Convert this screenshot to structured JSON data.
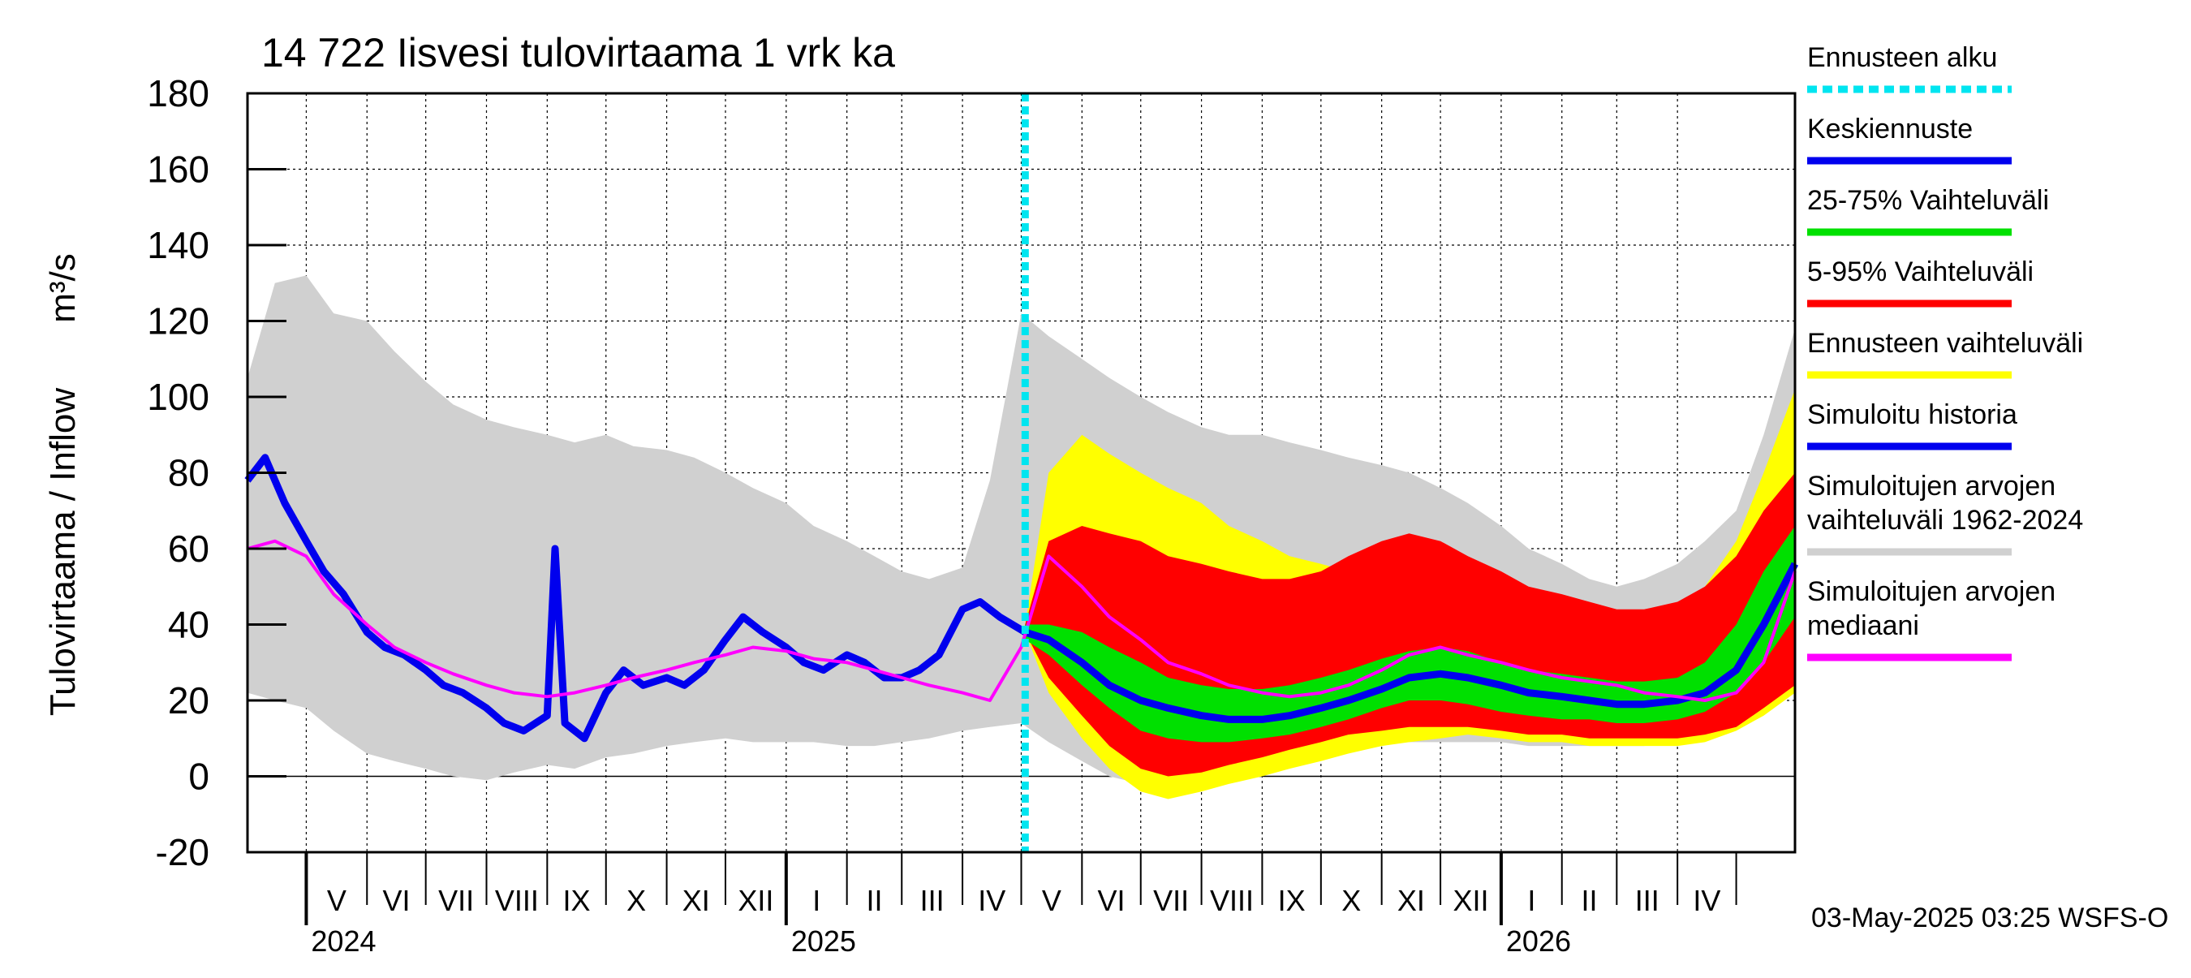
{
  "chart_data": {
    "type": "area",
    "title": "14 722 Iisvesi tulovirtaama 1 vrk ka",
    "ylabel": "Tulovirtaama / Inflow",
    "yunit": "m³/s",
    "ylim": [
      -20,
      180
    ],
    "yticks": [
      -20,
      0,
      20,
      40,
      60,
      80,
      100,
      120,
      140,
      160,
      180
    ],
    "grid": true,
    "legend_placement": "right",
    "xlim": [
      "2024-04-01",
      "2026-05-31"
    ],
    "forecast_start": "2025-05-03",
    "months": [
      {
        "label": "V",
        "start": "2024-05-01"
      },
      {
        "label": "VI",
        "start": "2024-06-01"
      },
      {
        "label": "VII",
        "start": "2024-07-01"
      },
      {
        "label": "VIII",
        "start": "2024-08-01"
      },
      {
        "label": "IX",
        "start": "2024-09-01"
      },
      {
        "label": "X",
        "start": "2024-10-01"
      },
      {
        "label": "XI",
        "start": "2024-11-01"
      },
      {
        "label": "XII",
        "start": "2024-12-01"
      },
      {
        "label": "I",
        "start": "2025-01-01"
      },
      {
        "label": "II",
        "start": "2025-02-01"
      },
      {
        "label": "III",
        "start": "2025-03-01"
      },
      {
        "label": "IV",
        "start": "2025-04-01"
      },
      {
        "label": "V",
        "start": "2025-05-01"
      },
      {
        "label": "VI",
        "start": "2025-06-01"
      },
      {
        "label": "VII",
        "start": "2025-07-01"
      },
      {
        "label": "VIII",
        "start": "2025-08-01"
      },
      {
        "label": "IX",
        "start": "2025-09-01"
      },
      {
        "label": "X",
        "start": "2025-10-01"
      },
      {
        "label": "XI",
        "start": "2025-11-01"
      },
      {
        "label": "XII",
        "start": "2025-12-01"
      },
      {
        "label": "I",
        "start": "2026-01-01"
      },
      {
        "label": "II",
        "start": "2026-02-01"
      },
      {
        "label": "III",
        "start": "2026-03-01"
      },
      {
        "label": "IV",
        "start": "2026-04-01"
      }
    ],
    "years": [
      {
        "label": "2024",
        "start": "2024-05-01"
      },
      {
        "label": "2025",
        "start": "2025-01-01"
      },
      {
        "label": "2026",
        "start": "2026-01-01"
      }
    ],
    "legend": [
      {
        "label": "Ennusteen alku",
        "color": "#00e5f0",
        "style": "dashed"
      },
      {
        "label": "Keskiennuste",
        "color": "#0000ee",
        "style": "solid"
      },
      {
        "label": "25-75% Vaihteluväli",
        "color": "#00e000",
        "style": "solid"
      },
      {
        "label": "5-95% Vaihteluväli",
        "color": "#ff0000",
        "style": "solid"
      },
      {
        "label": "Ennusteen vaihteluväli",
        "color": "#ffff00",
        "style": "solid"
      },
      {
        "label": "Simuloitu historia",
        "color": "#0000ee",
        "style": "solid"
      },
      {
        "label": "Simuloitujen arvojen\nvaihteluväli 1962-2024",
        "color": "#d0d0d0",
        "style": "solid"
      },
      {
        "label": "Simuloitujen arvojen\nmediaani",
        "color": "#ff00ff",
        "style": "solid"
      }
    ],
    "footer": "03-May-2025 03:25 WSFS-O",
    "series": [
      {
        "name": "Simuloitujen arvojen vaihteluväli 1962-2024",
        "kind": "band",
        "color": "#d0d0d0",
        "x": [
          "2024-04-01",
          "2024-04-15",
          "2024-05-01",
          "2024-05-15",
          "2024-06-01",
          "2024-06-15",
          "2024-07-01",
          "2024-07-15",
          "2024-08-01",
          "2024-08-15",
          "2024-09-01",
          "2024-09-15",
          "2024-10-01",
          "2024-10-15",
          "2024-11-01",
          "2024-11-15",
          "2024-12-01",
          "2024-12-15",
          "2025-01-01",
          "2025-01-15",
          "2025-02-01",
          "2025-02-15",
          "2025-03-01",
          "2025-03-15",
          "2025-04-01",
          "2025-04-15",
          "2025-05-01",
          "2025-05-15",
          "2025-06-01",
          "2025-06-15",
          "2025-07-01",
          "2025-07-15",
          "2025-08-01",
          "2025-08-15",
          "2025-09-01",
          "2025-09-15",
          "2025-10-01",
          "2025-10-15",
          "2025-11-01",
          "2025-11-15",
          "2025-12-01",
          "2025-12-15",
          "2026-01-01",
          "2026-01-15",
          "2026-02-01",
          "2026-02-15",
          "2026-03-01",
          "2026-03-15",
          "2026-04-01",
          "2026-04-15",
          "2026-05-01",
          "2026-05-15",
          "2026-05-31"
        ],
        "low": [
          22,
          20,
          18,
          12,
          6,
          4,
          2,
          0,
          -1,
          1,
          3,
          2,
          5,
          6,
          8,
          9,
          10,
          9,
          9,
          9,
          8,
          8,
          9,
          10,
          12,
          13,
          14,
          9,
          4,
          0,
          -2,
          0,
          2,
          4,
          7,
          8,
          9,
          10,
          9,
          9,
          9,
          9,
          9,
          8,
          8,
          8,
          8,
          8,
          9,
          10,
          14,
          18,
          22
        ],
        "high": [
          105,
          130,
          132,
          122,
          120,
          112,
          104,
          98,
          94,
          92,
          90,
          88,
          90,
          87,
          86,
          84,
          80,
          76,
          72,
          66,
          62,
          58,
          54,
          52,
          55,
          78,
          122,
          116,
          110,
          105,
          100,
          96,
          92,
          90,
          90,
          88,
          86,
          84,
          82,
          80,
          76,
          72,
          66,
          60,
          56,
          52,
          50,
          52,
          56,
          62,
          70,
          90,
          118
        ]
      },
      {
        "name": "Ennusteen vaihteluväli",
        "kind": "band",
        "color": "#ffff00",
        "x": [
          "2025-05-03",
          "2025-05-15",
          "2025-06-01",
          "2025-06-15",
          "2025-07-01",
          "2025-07-15",
          "2025-08-01",
          "2025-08-15",
          "2025-09-01",
          "2025-09-15",
          "2025-10-01",
          "2025-10-15",
          "2025-11-01",
          "2025-11-15",
          "2025-12-01",
          "2025-12-15",
          "2026-01-01",
          "2026-01-15",
          "2026-02-01",
          "2026-02-15",
          "2026-03-01",
          "2026-03-15",
          "2026-04-01",
          "2026-04-15",
          "2026-05-01",
          "2026-05-15",
          "2026-05-31"
        ],
        "low": [
          38,
          22,
          10,
          2,
          -4,
          -6,
          -4,
          -2,
          0,
          2,
          4,
          6,
          8,
          9,
          10,
          11,
          10,
          9,
          9,
          8,
          8,
          8,
          8,
          9,
          12,
          16,
          22
        ],
        "high": [
          40,
          80,
          90,
          85,
          80,
          76,
          72,
          66,
          62,
          58,
          56,
          54,
          54,
          56,
          56,
          54,
          52,
          48,
          46,
          44,
          42,
          42,
          44,
          50,
          62,
          80,
          102
        ]
      },
      {
        "name": "5-95% Vaihteluväli",
        "kind": "band",
        "color": "#ff0000",
        "x": [
          "2025-05-03",
          "2025-05-15",
          "2025-06-01",
          "2025-06-15",
          "2025-07-01",
          "2025-07-15",
          "2025-08-01",
          "2025-08-15",
          "2025-09-01",
          "2025-09-15",
          "2025-10-01",
          "2025-10-15",
          "2025-11-01",
          "2025-11-15",
          "2025-12-01",
          "2025-12-15",
          "2026-01-01",
          "2026-01-15",
          "2026-02-01",
          "2026-02-15",
          "2026-03-01",
          "2026-03-15",
          "2026-04-01",
          "2026-04-15",
          "2026-05-01",
          "2026-05-15",
          "2026-05-31"
        ],
        "low": [
          38,
          26,
          16,
          8,
          2,
          0,
          1,
          3,
          5,
          7,
          9,
          11,
          12,
          13,
          13,
          13,
          12,
          11,
          11,
          10,
          10,
          10,
          10,
          11,
          13,
          18,
          24
        ],
        "high": [
          40,
          62,
          66,
          64,
          62,
          58,
          56,
          54,
          52,
          52,
          54,
          58,
          62,
          64,
          62,
          58,
          54,
          50,
          48,
          46,
          44,
          44,
          46,
          50,
          58,
          70,
          80
        ]
      },
      {
        "name": "25-75% Vaihteluväli",
        "kind": "band",
        "color": "#00e000",
        "x": [
          "2025-05-03",
          "2025-05-15",
          "2025-06-01",
          "2025-06-15",
          "2025-07-01",
          "2025-07-15",
          "2025-08-01",
          "2025-08-15",
          "2025-09-01",
          "2025-09-15",
          "2025-10-01",
          "2025-10-15",
          "2025-11-01",
          "2025-11-15",
          "2025-12-01",
          "2025-12-15",
          "2026-01-01",
          "2026-01-15",
          "2026-02-01",
          "2026-02-15",
          "2026-03-01",
          "2026-03-15",
          "2026-04-01",
          "2026-04-15",
          "2026-05-01",
          "2026-05-15",
          "2026-05-31"
        ],
        "low": [
          36,
          32,
          24,
          18,
          12,
          10,
          9,
          9,
          10,
          11,
          13,
          15,
          18,
          20,
          20,
          19,
          17,
          16,
          15,
          15,
          14,
          14,
          15,
          17,
          22,
          30,
          42
        ],
        "high": [
          40,
          40,
          38,
          34,
          30,
          26,
          24,
          23,
          23,
          24,
          26,
          28,
          31,
          33,
          34,
          33,
          30,
          28,
          27,
          26,
          25,
          25,
          26,
          30,
          40,
          54,
          66
        ]
      },
      {
        "name": "Keskiennuste",
        "kind": "line",
        "color": "#0000ee",
        "x": [
          "2025-05-03",
          "2025-05-15",
          "2025-06-01",
          "2025-06-15",
          "2025-07-01",
          "2025-07-15",
          "2025-08-01",
          "2025-08-15",
          "2025-09-01",
          "2025-09-15",
          "2025-10-01",
          "2025-10-15",
          "2025-11-01",
          "2025-11-15",
          "2025-12-01",
          "2025-12-15",
          "2026-01-01",
          "2026-01-15",
          "2026-02-01",
          "2026-02-15",
          "2026-03-01",
          "2026-03-15",
          "2026-04-01",
          "2026-04-15",
          "2026-05-01",
          "2026-05-15",
          "2026-05-31"
        ],
        "y": [
          38,
          36,
          30,
          24,
          20,
          18,
          16,
          15,
          15,
          16,
          18,
          20,
          23,
          26,
          27,
          26,
          24,
          22,
          21,
          20,
          19,
          19,
          20,
          22,
          28,
          40,
          56
        ]
      },
      {
        "name": "Simuloitu historia",
        "kind": "line",
        "color": "#0000ee",
        "x": [
          "2024-04-01",
          "2024-04-10",
          "2024-04-20",
          "2024-05-01",
          "2024-05-10",
          "2024-05-20",
          "2024-06-01",
          "2024-06-10",
          "2024-06-20",
          "2024-07-01",
          "2024-07-10",
          "2024-07-20",
          "2024-08-01",
          "2024-08-10",
          "2024-08-20",
          "2024-09-01",
          "2024-09-05",
          "2024-09-10",
          "2024-09-20",
          "2024-10-01",
          "2024-10-10",
          "2024-10-20",
          "2024-11-01",
          "2024-11-10",
          "2024-11-20",
          "2024-12-01",
          "2024-12-10",
          "2024-12-20",
          "2025-01-01",
          "2025-01-10",
          "2025-01-20",
          "2025-02-01",
          "2025-02-10",
          "2025-02-20",
          "2025-03-01",
          "2025-03-10",
          "2025-03-20",
          "2025-04-01",
          "2025-04-10",
          "2025-04-20",
          "2025-05-03"
        ],
        "y": [
          78,
          84,
          72,
          62,
          54,
          48,
          38,
          34,
          32,
          28,
          24,
          22,
          18,
          14,
          12,
          16,
          60,
          14,
          10,
          22,
          28,
          24,
          26,
          24,
          28,
          36,
          42,
          38,
          34,
          30,
          28,
          32,
          30,
          26,
          26,
          28,
          32,
          44,
          46,
          42,
          38
        ]
      },
      {
        "name": "Simuloitujen arvojen mediaani",
        "kind": "line",
        "color": "#ff00ff",
        "x": [
          "2024-04-01",
          "2024-04-15",
          "2024-05-01",
          "2024-05-15",
          "2024-06-01",
          "2024-06-15",
          "2024-07-01",
          "2024-07-15",
          "2024-08-01",
          "2024-08-15",
          "2024-09-01",
          "2024-09-15",
          "2024-10-01",
          "2024-10-15",
          "2024-11-01",
          "2024-11-15",
          "2024-12-01",
          "2024-12-15",
          "2025-01-01",
          "2025-01-15",
          "2025-02-01",
          "2025-02-15",
          "2025-03-01",
          "2025-03-15",
          "2025-04-01",
          "2025-04-15",
          "2025-05-01",
          "2025-05-15",
          "2025-06-01",
          "2025-06-15",
          "2025-07-01",
          "2025-07-15",
          "2025-08-01",
          "2025-08-15",
          "2025-09-01",
          "2025-09-15",
          "2025-10-01",
          "2025-10-15",
          "2025-11-01",
          "2025-11-15",
          "2025-12-01",
          "2025-12-15",
          "2026-01-01",
          "2026-01-15",
          "2026-02-01",
          "2026-02-15",
          "2026-03-01",
          "2026-03-15",
          "2026-04-01",
          "2026-04-15",
          "2026-05-01",
          "2026-05-15",
          "2026-05-31"
        ],
        "y": [
          60,
          62,
          58,
          48,
          40,
          34,
          30,
          27,
          24,
          22,
          21,
          22,
          24,
          26,
          28,
          30,
          32,
          34,
          33,
          31,
          30,
          28,
          26,
          24,
          22,
          20,
          34,
          58,
          50,
          42,
          36,
          30,
          27,
          24,
          22,
          21,
          22,
          24,
          28,
          32,
          34,
          32,
          30,
          28,
          26,
          25,
          24,
          22,
          21,
          20,
          22,
          30,
          54
        ]
      }
    ]
  }
}
